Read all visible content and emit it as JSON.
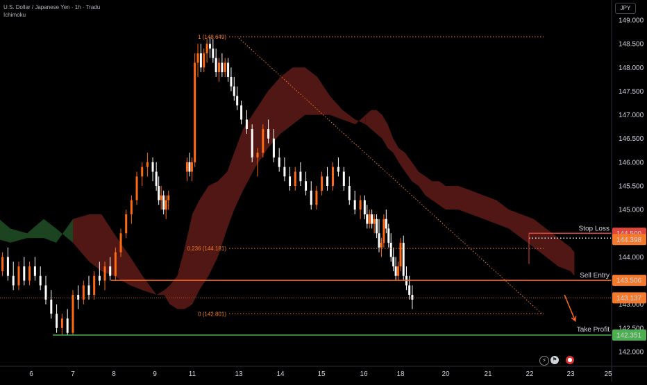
{
  "header": {
    "symbol": "U.S. Dollar / Japanese Yen · 1h · Tradu",
    "indicator": "Ichimoku"
  },
  "currency_label": "JPY",
  "colors": {
    "background": "#000000",
    "up_candle": "#ff6a13",
    "down_candle": "#ffffff",
    "stop_loss": "#e0453a",
    "sell_entry": "#ff6a1a",
    "take_profit": "#4caf50",
    "fib": "#f07d2a",
    "cloud_bull": "#1f4b24",
    "cloud_bear": "#5a1a16",
    "price_tag": "#f5792a"
  },
  "bottom_icons": [
    "lightning-icon",
    "flag-icon",
    "record-icon"
  ],
  "chart_data": {
    "type": "candlestick",
    "y_axis": {
      "ylim": [
        141.85,
        149.15
      ],
      "ticks": [
        142.0,
        142.5,
        143.0,
        143.5,
        144.0,
        144.5,
        145.0,
        145.5,
        146.0,
        146.5,
        147.0,
        147.5,
        148.0,
        148.5,
        149.0
      ],
      "tick_labels": [
        "142.000",
        "142.500",
        "143.000",
        "143.500",
        "144.000",
        "144.500",
        "145.000",
        "145.500",
        "146.000",
        "146.500",
        "147.000",
        "147.500",
        "148.000",
        "148.500",
        "149.000"
      ]
    },
    "x_axis": {
      "ticks": [
        6,
        7,
        8,
        9,
        11,
        13,
        14,
        15,
        16,
        18,
        20,
        21,
        22,
        23,
        25
      ],
      "tick_labels": [
        "6",
        "7",
        "8",
        "9",
        "11",
        "13",
        "14",
        "15",
        "16",
        "18",
        "20",
        "21",
        "22",
        "23",
        "25"
      ]
    },
    "levels": [
      {
        "name": "Stop Loss",
        "value": 144.5,
        "tag": "144.500",
        "color": "#e0453a"
      },
      {
        "name": "Sell Entry",
        "value": 143.506,
        "tag": "143.506",
        "color": "#ff6a1a"
      },
      {
        "name": "Take Profit",
        "value": 142.351,
        "tag": "142.351",
        "color": "#4caf50"
      }
    ],
    "current_price": {
      "value": 143.137,
      "tag": "143.137"
    },
    "dotted_level": {
      "value": 144.398,
      "tag": "144.398"
    },
    "fibonacci": [
      {
        "ratio": "1",
        "value": 148.649,
        "label": "1 (148.649)"
      },
      {
        "ratio": "0.236",
        "value": 144.181,
        "label": "0.236 (144.181)"
      },
      {
        "ratio": "0",
        "value": 142.801,
        "label": "0 (142.801)"
      }
    ],
    "trendline": {
      "from": [
        13.0,
        148.62
      ],
      "to": [
        22.3,
        142.8
      ]
    },
    "projection_arrow": {
      "from": [
        22.85,
        143.2
      ],
      "to": [
        23.25,
        142.65
      ]
    },
    "cloud": {
      "x": [
        5.1,
        5.5,
        5.9,
        6.3,
        6.6,
        7.0,
        7.4,
        7.7,
        8.0,
        8.4,
        8.7,
        9.1,
        9.5,
        9.8,
        10.2,
        10.6,
        11.0,
        11.3,
        11.7,
        12.1,
        12.5,
        12.8,
        13.1,
        13.4,
        13.7,
        14.0,
        14.3,
        14.6,
        14.9,
        15.2,
        15.5,
        15.8,
        16.1,
        16.4,
        16.7,
        17.0,
        17.3,
        17.6,
        17.9,
        18.2,
        18.5,
        18.8,
        19.1,
        19.4,
        19.7,
        20.0,
        20.3,
        20.6,
        20.9,
        21.2,
        21.5,
        21.8,
        22.1,
        22.4,
        22.7,
        23.0,
        23.2
      ],
      "span_a": [
        144.9,
        144.6,
        144.5,
        144.8,
        144.6,
        144.3,
        143.9,
        143.7,
        143.6,
        143.4,
        143.3,
        143.2,
        143.3,
        143.4,
        143.6,
        144.2,
        144.9,
        145.2,
        145.5,
        145.6,
        145.8,
        146.2,
        146.7,
        147.1,
        147.5,
        147.8,
        148.0,
        148.0,
        147.8,
        147.4,
        147.1,
        146.9,
        146.8,
        146.7,
        146.6,
        146.5,
        146.3,
        146.2,
        146.0,
        145.8,
        145.6,
        145.5,
        145.3,
        145.2,
        145.1,
        145.0,
        145.0,
        144.9,
        144.8,
        144.7,
        144.6,
        144.4,
        144.2,
        144.0,
        143.8,
        143.7,
        143.6
      ],
      "span_b": [
        144.4,
        144.3,
        144.4,
        144.4,
        144.3,
        144.8,
        144.9,
        144.9,
        144.5,
        144.0,
        143.6,
        143.2,
        143.2,
        143.0,
        142.9,
        142.9,
        143.0,
        143.3,
        143.6,
        144.0,
        144.6,
        145.0,
        145.4,
        145.9,
        146.3,
        146.6,
        146.8,
        147.0,
        147.0,
        147.0,
        146.9,
        146.8,
        147.0,
        147.1,
        147.1,
        147.0,
        146.8,
        146.5,
        146.3,
        146.2,
        146.0,
        145.8,
        145.7,
        145.6,
        145.6,
        145.5,
        145.5,
        145.4,
        145.3,
        145.2,
        145.0,
        144.9,
        144.8,
        144.6,
        144.4,
        144.2,
        144.1
      ]
    },
    "candles": [
      [
        5.05,
        144.2,
        144.4,
        143.8,
        143.9
      ],
      [
        5.18,
        143.9,
        144.0,
        143.6,
        143.7
      ],
      [
        5.31,
        143.7,
        144.1,
        143.6,
        144.0
      ],
      [
        5.44,
        144.0,
        144.2,
        143.5,
        143.6
      ],
      [
        5.57,
        143.6,
        143.9,
        143.3,
        143.4
      ],
      [
        5.7,
        143.4,
        143.9,
        143.3,
        143.8
      ],
      [
        5.83,
        143.8,
        144.0,
        143.4,
        143.5
      ],
      [
        5.96,
        143.5,
        143.9,
        143.4,
        143.8
      ],
      [
        6.09,
        143.8,
        144.0,
        143.5,
        143.6
      ],
      [
        6.22,
        143.6,
        143.8,
        143.3,
        143.4
      ],
      [
        6.35,
        143.4,
        143.6,
        143.0,
        143.1
      ],
      [
        6.48,
        143.1,
        143.3,
        142.7,
        142.8
      ],
      [
        6.61,
        142.8,
        143.0,
        142.4,
        142.5
      ],
      [
        6.74,
        142.5,
        142.8,
        142.35,
        142.7
      ],
      [
        6.87,
        142.7,
        142.9,
        142.35,
        142.4
      ],
      [
        7.0,
        142.4,
        143.3,
        142.35,
        143.2
      ],
      [
        7.13,
        143.2,
        143.4,
        142.9,
        143.1
      ],
      [
        7.26,
        143.1,
        143.5,
        143.0,
        143.4
      ],
      [
        7.39,
        143.4,
        143.6,
        143.1,
        143.2
      ],
      [
        7.52,
        143.2,
        143.7,
        143.1,
        143.6
      ],
      [
        7.65,
        143.6,
        143.9,
        143.4,
        143.5
      ],
      [
        7.78,
        143.5,
        143.9,
        143.3,
        143.8
      ],
      [
        7.91,
        143.8,
        144.0,
        143.5,
        143.6
      ],
      [
        8.04,
        143.6,
        144.2,
        143.5,
        144.1
      ],
      [
        8.17,
        144.1,
        144.6,
        144.0,
        144.5
      ],
      [
        8.3,
        144.5,
        145.0,
        144.4,
        144.9
      ],
      [
        8.43,
        144.9,
        145.3,
        144.7,
        145.2
      ],
      [
        8.56,
        145.2,
        145.8,
        145.1,
        145.7
      ],
      [
        8.69,
        145.7,
        146.0,
        145.5,
        145.9
      ],
      [
        8.82,
        145.9,
        146.2,
        145.7,
        146.0
      ],
      [
        8.95,
        146.0,
        146.1,
        145.6,
        145.8
      ],
      [
        9.08,
        145.8,
        146.0,
        145.4,
        145.5
      ],
      [
        9.21,
        145.5,
        145.7,
        145.1,
        145.2
      ],
      [
        9.34,
        145.2,
        145.5,
        145.0,
        145.3
      ],
      [
        9.47,
        145.3,
        145.4,
        144.9,
        145.0
      ],
      [
        9.6,
        145.0,
        145.3,
        144.8,
        145.2
      ],
      [
        9.73,
        145.2,
        145.4,
        145.0,
        145.3
      ],
      [
        10.72,
        145.8,
        146.1,
        145.6,
        146.0
      ],
      [
        10.85,
        146.0,
        146.2,
        145.7,
        145.8
      ],
      [
        10.98,
        145.8,
        146.1,
        145.6,
        146.0
      ],
      [
        11.11,
        146.0,
        148.3,
        145.9,
        148.1
      ],
      [
        11.24,
        148.1,
        148.5,
        147.8,
        148.3
      ],
      [
        11.37,
        148.3,
        148.5,
        147.9,
        148.0
      ],
      [
        11.5,
        148.0,
        148.4,
        147.9,
        148.3
      ],
      [
        11.63,
        148.3,
        148.6,
        148.1,
        148.5
      ],
      [
        11.76,
        148.5,
        148.65,
        148.2,
        148.4
      ],
      [
        11.89,
        148.4,
        148.6,
        148.1,
        148.2
      ],
      [
        12.02,
        148.2,
        148.4,
        147.8,
        147.9
      ],
      [
        12.15,
        147.9,
        148.2,
        147.7,
        148.1
      ],
      [
        12.28,
        148.1,
        148.3,
        147.8,
        147.9
      ],
      [
        12.41,
        147.9,
        148.2,
        147.8,
        148.1
      ],
      [
        12.54,
        148.1,
        148.2,
        147.7,
        147.8
      ],
      [
        12.67,
        147.8,
        148.0,
        147.5,
        147.6
      ],
      [
        12.8,
        147.6,
        147.8,
        147.3,
        147.4
      ],
      [
        12.93,
        147.4,
        147.6,
        147.1,
        147.2
      ],
      [
        13.06,
        147.2,
        147.3,
        146.8,
        146.9
      ],
      [
        13.19,
        146.9,
        147.1,
        146.6,
        146.7
      ],
      [
        13.32,
        146.7,
        146.8,
        146.0,
        146.1
      ],
      [
        13.45,
        146.1,
        146.3,
        145.7,
        146.2
      ],
      [
        13.58,
        146.2,
        146.8,
        146.1,
        146.7
      ],
      [
        13.71,
        146.7,
        146.9,
        146.4,
        146.5
      ],
      [
        13.84,
        146.5,
        146.7,
        146.0,
        146.1
      ],
      [
        13.97,
        146.1,
        146.3,
        145.8,
        145.9
      ],
      [
        14.1,
        145.9,
        146.1,
        145.6,
        145.7
      ],
      [
        14.23,
        145.7,
        145.9,
        145.4,
        145.5
      ],
      [
        14.36,
        145.5,
        145.9,
        145.4,
        145.8
      ],
      [
        14.49,
        145.8,
        146.0,
        145.5,
        145.6
      ],
      [
        14.62,
        145.6,
        145.8,
        145.3,
        145.4
      ],
      [
        14.75,
        145.4,
        145.6,
        145.0,
        145.1
      ],
      [
        14.88,
        145.1,
        145.5,
        145.0,
        145.4
      ],
      [
        15.01,
        145.4,
        145.8,
        145.3,
        145.7
      ],
      [
        15.14,
        145.7,
        145.9,
        145.4,
        145.5
      ],
      [
        15.27,
        145.5,
        146.0,
        145.4,
        145.9
      ],
      [
        15.4,
        145.9,
        146.1,
        145.7,
        145.8
      ],
      [
        15.53,
        145.8,
        145.9,
        145.4,
        145.5
      ],
      [
        15.66,
        145.5,
        145.7,
        145.1,
        145.2
      ],
      [
        15.79,
        145.2,
        145.4,
        144.9,
        145.0
      ],
      [
        15.92,
        145.0,
        145.3,
        144.8,
        145.2
      ],
      [
        16.05,
        145.2,
        145.3,
        144.8,
        144.9
      ],
      [
        16.18,
        144.9,
        145.1,
        144.6,
        144.7
      ],
      [
        16.31,
        144.7,
        145.0,
        144.6,
        144.9
      ],
      [
        16.44,
        144.9,
        145.0,
        144.6,
        144.7
      ],
      [
        16.57,
        144.7,
        144.9,
        144.5,
        144.8
      ],
      [
        16.7,
        144.8,
        144.9,
        144.4,
        144.5
      ],
      [
        16.83,
        144.5,
        144.8,
        144.1,
        144.2
      ],
      [
        16.96,
        144.2,
        144.4,
        144.0,
        144.3
      ],
      [
        17.09,
        144.3,
        144.9,
        144.2,
        144.8
      ],
      [
        17.22,
        144.8,
        145.0,
        144.5,
        144.6
      ],
      [
        17.35,
        144.6,
        144.7,
        144.2,
        144.3
      ],
      [
        17.48,
        144.3,
        144.5,
        143.9,
        144.0
      ],
      [
        17.61,
        144.0,
        144.2,
        143.7,
        143.8
      ],
      [
        17.74,
        143.8,
        144.0,
        143.5,
        143.6
      ],
      [
        17.87,
        143.6,
        143.9,
        143.5,
        143.8
      ],
      [
        18.0,
        143.8,
        144.4,
        143.7,
        144.3
      ],
      [
        18.13,
        144.3,
        144.45,
        143.5,
        143.6
      ],
      [
        18.26,
        143.6,
        143.8,
        143.3,
        143.4
      ],
      [
        18.39,
        143.4,
        143.6,
        143.1,
        143.2
      ],
      [
        18.52,
        143.2,
        143.4,
        142.9,
        143.1
      ]
    ]
  }
}
